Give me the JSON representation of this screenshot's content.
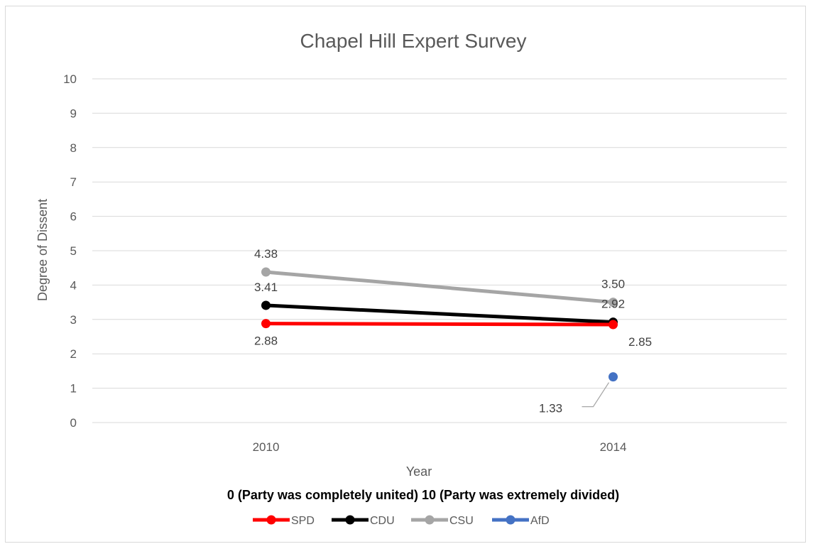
{
  "chart_data": {
    "type": "line",
    "title": "Chapel Hill Expert Survey",
    "xlabel": "Year",
    "ylabel": "Degree of Dissent",
    "note": "0 (Party was completely united) 10 (Party was extremely divided)",
    "categories": [
      "2010",
      "2014"
    ],
    "ylim": [
      0,
      10
    ],
    "yticks": [
      "0",
      "1",
      "2",
      "3",
      "4",
      "5",
      "6",
      "7",
      "8",
      "9",
      "10"
    ],
    "grid": true,
    "legend_position": "bottom",
    "series": [
      {
        "name": "SPD",
        "color": "#ff0000",
        "values": [
          2.88,
          2.85
        ],
        "labels": [
          "2.88",
          "2.85"
        ]
      },
      {
        "name": "CDU",
        "color": "#000000",
        "values": [
          3.41,
          2.92
        ],
        "labels": [
          "3.41",
          "2.92"
        ]
      },
      {
        "name": "CSU",
        "color": "#a5a5a5",
        "values": [
          4.38,
          3.5
        ],
        "labels": [
          "4.38",
          "3.50"
        ]
      },
      {
        "name": "AfD",
        "color": "#4472c4",
        "values": [
          null,
          1.33
        ],
        "labels": [
          "",
          "1.33"
        ]
      }
    ]
  }
}
